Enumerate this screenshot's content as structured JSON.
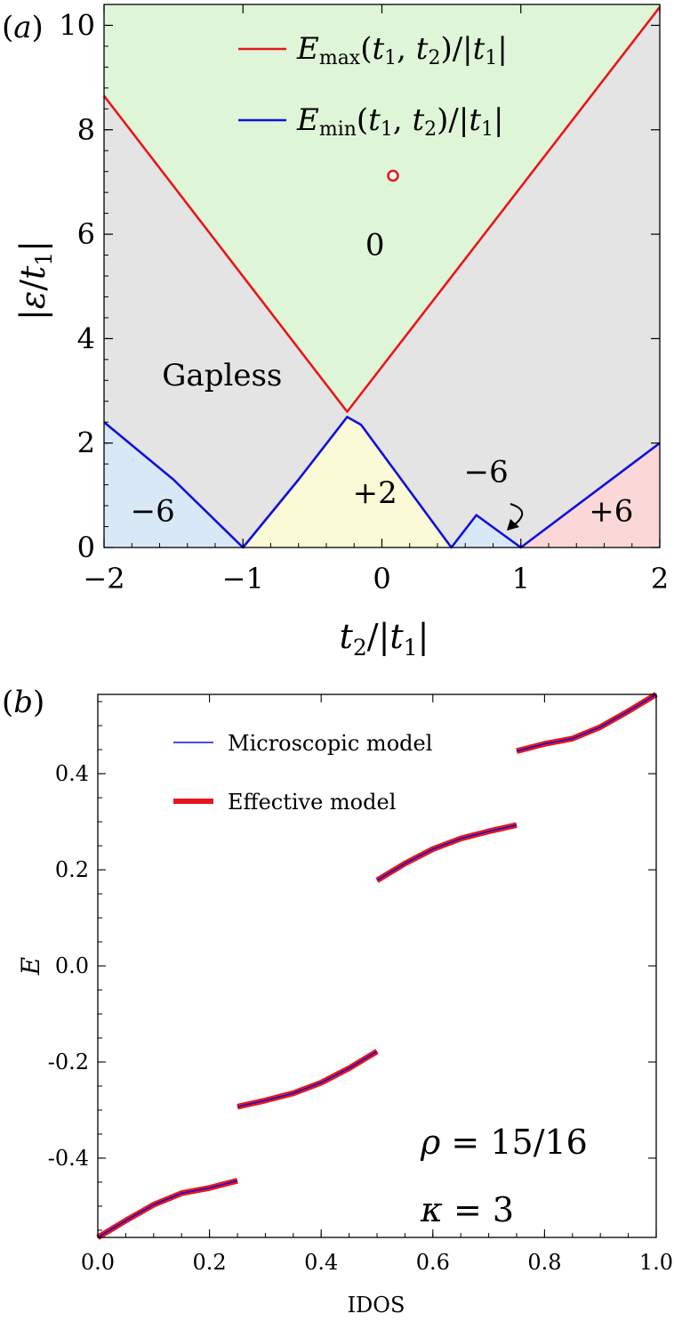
{
  "chart_data": [
    {
      "panel_label": "(a)",
      "type": "area",
      "xlabel": "t2/|t1|",
      "ylabel": "|ε/t1|",
      "xlim": [
        -2,
        2
      ],
      "ylim": [
        0,
        10.4
      ],
      "xticks": [
        -2,
        -1,
        0,
        1,
        2
      ],
      "xtick_labels": [
        "−2",
        "−1",
        "0",
        "1",
        "2"
      ],
      "yticks": [
        0,
        2,
        4,
        6,
        8,
        10
      ],
      "ytick_labels": [
        "0",
        "2",
        "4",
        "6",
        "8",
        "10"
      ],
      "grid": false,
      "legend_position": "top-center",
      "series": [
        {
          "name": "Emax(t1,t2)/|t1|",
          "color": "#e8161b",
          "x": [
            -2,
            -0.25,
            2
          ],
          "y": [
            8.65,
            2.6,
            10.35
          ]
        },
        {
          "name": "Emin(t1,t2)/|t1|",
          "color": "#1010d8",
          "x": [
            -2,
            -1.5,
            -1,
            -0.6,
            -0.25,
            -0.15,
            0.5,
            0.68,
            1,
            2
          ],
          "y": [
            2.4,
            1.3,
            0,
            1.3,
            2.5,
            2.35,
            0,
            0.62,
            0,
            2.0
          ]
        }
      ],
      "regions": [
        {
          "label": "0",
          "color": "#dff5d8",
          "label_x": -0.05,
          "label_y": 5.6
        },
        {
          "label": "Gapless",
          "color": "#e4e4e4",
          "label_x": -1.15,
          "label_y": 3.1
        },
        {
          "label": "+2",
          "color": "#fbfad6",
          "label_x": -0.05,
          "label_y": 0.85
        },
        {
          "label": "−6",
          "color": "#d8e8f7",
          "label_x": -1.65,
          "label_y": 0.5
        },
        {
          "label": "−6",
          "color": "#d8e8f7",
          "label_x": 0.75,
          "label_y": 1.25
        },
        {
          "label": "+6",
          "color": "#fbd8d8",
          "label_x": 1.65,
          "label_y": 0.5
        }
      ],
      "marker": {
        "x": 0.08,
        "y": 7.12,
        "color": "#e8161b"
      }
    },
    {
      "panel_label": "(b)",
      "type": "line",
      "xlabel": "IDOS",
      "ylabel": "E",
      "xlim": [
        0,
        1.0
      ],
      "ylim": [
        -0.565,
        0.565
      ],
      "xticks": [
        0,
        0.2,
        0.4,
        0.6,
        0.8,
        1.0
      ],
      "xtick_labels": [
        "0.0",
        "0.2",
        "0.4",
        "0.6",
        "0.8",
        "1.0"
      ],
      "yticks": [
        -0.4,
        -0.2,
        0,
        0.2,
        0.4
      ],
      "ytick_labels": [
        "-0.4",
        "-0.2",
        "0.0",
        "0.2",
        "0.4"
      ],
      "grid": false,
      "legend_position": "top-left",
      "annotations": [
        "ρ = 15/16",
        "κ = 3"
      ],
      "series": [
        {
          "name": "Microscopic model",
          "color": "#1010d8",
          "segments": [
            {
              "x": [
                0.0,
                0.05,
                0.1,
                0.15,
                0.2,
                0.25
              ],
              "y": [
                -0.565,
                -0.53,
                -0.497,
                -0.473,
                -0.462,
                -0.447
              ]
            },
            {
              "x": [
                0.25,
                0.3,
                0.35,
                0.4,
                0.45,
                0.5
              ],
              "y": [
                -0.293,
                -0.28,
                -0.265,
                -0.243,
                -0.213,
                -0.178
              ]
            },
            {
              "x": [
                0.5,
                0.55,
                0.6,
                0.65,
                0.7,
                0.75
              ],
              "y": [
                0.178,
                0.213,
                0.243,
                0.265,
                0.28,
                0.293
              ]
            },
            {
              "x": [
                0.75,
                0.8,
                0.85,
                0.9,
                0.95,
                1.0
              ],
              "y": [
                0.447,
                0.462,
                0.473,
                0.497,
                0.53,
                0.565
              ]
            }
          ]
        },
        {
          "name": "Effective model",
          "color": "#e8161b",
          "segments": [
            {
              "x": [
                0.0,
                0.05,
                0.1,
                0.15,
                0.2,
                0.25
              ],
              "y": [
                -0.565,
                -0.53,
                -0.497,
                -0.473,
                -0.462,
                -0.447
              ]
            },
            {
              "x": [
                0.25,
                0.3,
                0.35,
                0.4,
                0.45,
                0.5
              ],
              "y": [
                -0.293,
                -0.28,
                -0.265,
                -0.243,
                -0.213,
                -0.178
              ]
            },
            {
              "x": [
                0.5,
                0.55,
                0.6,
                0.65,
                0.7,
                0.75
              ],
              "y": [
                0.178,
                0.213,
                0.243,
                0.265,
                0.28,
                0.293
              ]
            },
            {
              "x": [
                0.75,
                0.8,
                0.85,
                0.9,
                0.95,
                1.0
              ],
              "y": [
                0.447,
                0.462,
                0.473,
                0.497,
                0.53,
                0.565
              ]
            }
          ]
        }
      ]
    }
  ]
}
